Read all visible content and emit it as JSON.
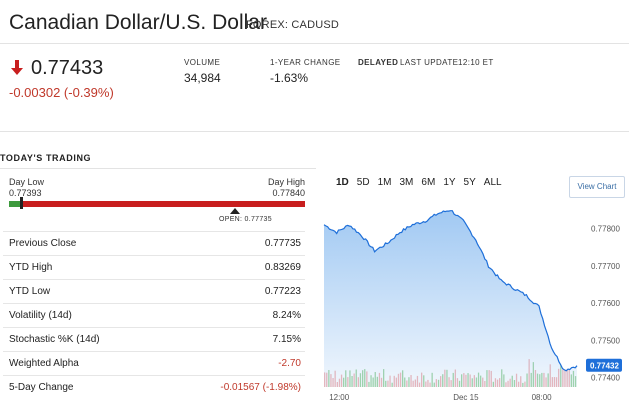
{
  "header": {
    "title": "Canadian Dollar/U.S. Dollar",
    "subtitle": "FOREX: CADUSD"
  },
  "quote": {
    "price": "0.77433",
    "change": "-0.00302 (-0.39%)",
    "direction_icon": "down-arrow-icon",
    "volume_label": "VOLUME",
    "volume": "34,984",
    "year_change_label": "1-YEAR CHANGE",
    "year_change": "-1.63%",
    "delayed_label": "DELAYED",
    "last_update_label": "LAST UPDATE",
    "last_update": "12:10 ET"
  },
  "todays_trading": {
    "title": "TODAY'S TRADING",
    "day_low_label": "Day Low",
    "day_low": "0.77393",
    "day_high_label": "Day High",
    "day_high": "0.77840",
    "open_label": "OPEN: 0.77735",
    "stats": [
      {
        "label": "Previous Close",
        "value": "0.77735",
        "negative": false
      },
      {
        "label": "YTD High",
        "value": "0.83269",
        "negative": false
      },
      {
        "label": "YTD Low",
        "value": "0.77223",
        "negative": false
      },
      {
        "label": "Volatility (14d)",
        "value": "8.24%",
        "negative": false
      },
      {
        "label": "Stochastic %K (14d)",
        "value": "7.15%",
        "negative": false
      },
      {
        "label": "Weighted Alpha",
        "value": "-2.70",
        "negative": true
      },
      {
        "label": "5-Day Change",
        "value": "-0.01567 (-1.98%)",
        "negative": true
      }
    ]
  },
  "chart_controls": {
    "ranges": [
      "1D",
      "5D",
      "1M",
      "3M",
      "6M",
      "1Y",
      "5Y",
      "ALL"
    ],
    "active_range": "1D",
    "view_chart_label": "View Chart"
  },
  "colors": {
    "negative": "#c0392b",
    "bar_red": "#c81e1e",
    "bar_green": "#3d9a3d",
    "line": "#1e6fd9",
    "area": "#9cc6f2",
    "price_tag": "#1e6fd9",
    "volume_green": "#9fd49f",
    "volume_red": "#f2b3b3"
  },
  "chart_data": {
    "type": "area",
    "title": "",
    "xlabel": "",
    "ylabel": "",
    "x_ticks": [
      "12:00",
      "Dec 15",
      "08:00"
    ],
    "y_ticks": [
      "0.77800",
      "0.77700",
      "0.77600",
      "0.77500",
      "0.77400"
    ],
    "ylim": [
      0.77375,
      0.77855
    ],
    "last_price_label": "0.77432",
    "series": [
      {
        "x": [
          0,
          0.05,
          0.1,
          0.15,
          0.2,
          0.25,
          0.3,
          0.35,
          0.4,
          0.45,
          0.5,
          0.55,
          0.6,
          0.65,
          0.7,
          0.75,
          0.8,
          0.85,
          0.9,
          0.95,
          1.0
        ],
        "values": [
          0.7781,
          0.7779,
          0.7781,
          0.7778,
          0.7774,
          0.7776,
          0.7779,
          0.7781,
          0.7782,
          0.7784,
          0.7785,
          0.7782,
          0.7777,
          0.777,
          0.7766,
          0.7764,
          0.7762,
          0.7759,
          0.7748,
          0.7742,
          0.77432
        ]
      }
    ]
  }
}
